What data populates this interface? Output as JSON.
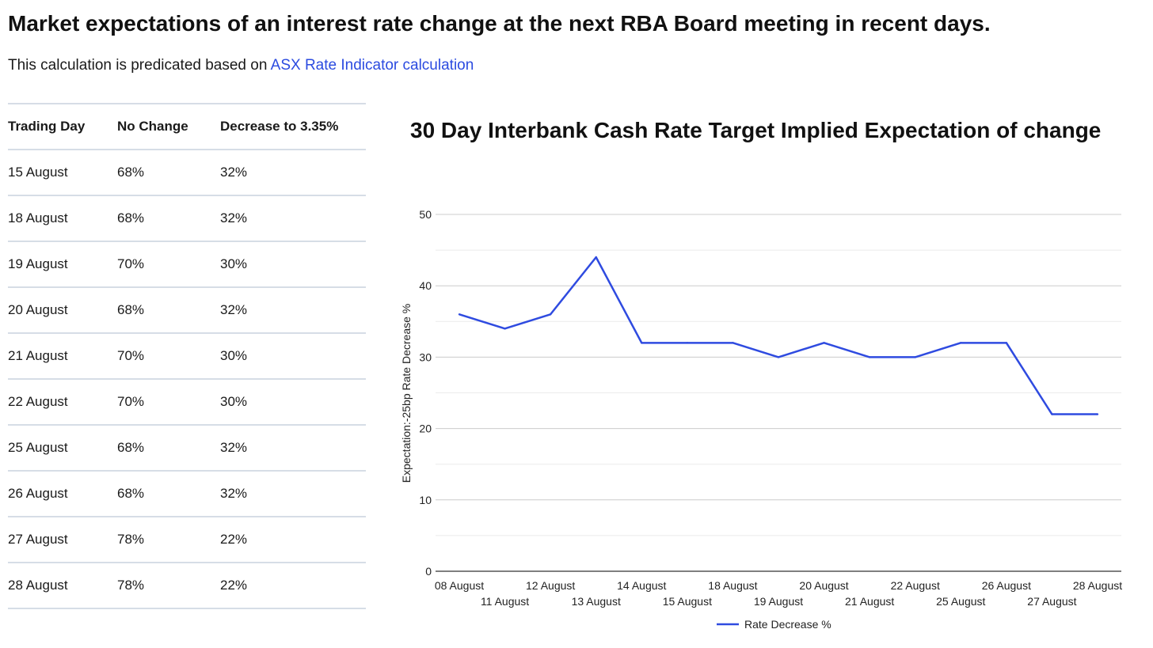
{
  "header": {
    "title": "Market expectations of an interest rate change at the next RBA Board meeting in recent days.",
    "subtitle_prefix": "This calculation is predicated based on ",
    "subtitle_link": "ASX Rate Indicator calculation"
  },
  "table": {
    "columns": [
      "Trading Day",
      "No Change",
      "Decrease to 3.35%"
    ],
    "rows": [
      [
        "15 August",
        "68%",
        "32%"
      ],
      [
        "18 August",
        "68%",
        "32%"
      ],
      [
        "19 August",
        "70%",
        "30%"
      ],
      [
        "20 August",
        "68%",
        "32%"
      ],
      [
        "21 August",
        "70%",
        "30%"
      ],
      [
        "22 August",
        "70%",
        "30%"
      ],
      [
        "25 August",
        "68%",
        "32%"
      ],
      [
        "26 August",
        "68%",
        "32%"
      ],
      [
        "27 August",
        "78%",
        "22%"
      ],
      [
        "28 August",
        "78%",
        "22%"
      ]
    ]
  },
  "chart_data": {
    "type": "line",
    "title": "30 Day Interbank Cash Rate Target Implied Expectation of change",
    "xlabel": "",
    "ylabel": "Expectation:-25bp Rate Decrease %",
    "ylim": [
      0,
      50
    ],
    "yticks": [
      0,
      10,
      20,
      30,
      40,
      50
    ],
    "grid": true,
    "legend_position": "bottom-center",
    "categories": [
      "08 August",
      "11 August",
      "12 August",
      "13 August",
      "14 August",
      "15 August",
      "18 August",
      "19 August",
      "20 August",
      "21 August",
      "22 August",
      "25 August",
      "26 August",
      "27 August",
      "28 August"
    ],
    "series": [
      {
        "name": "Rate Decrease %",
        "color": "#2f4be0",
        "values": [
          36,
          34,
          36,
          44,
          32,
          32,
          32,
          30,
          32,
          30,
          30,
          32,
          32,
          22,
          22
        ]
      }
    ]
  }
}
